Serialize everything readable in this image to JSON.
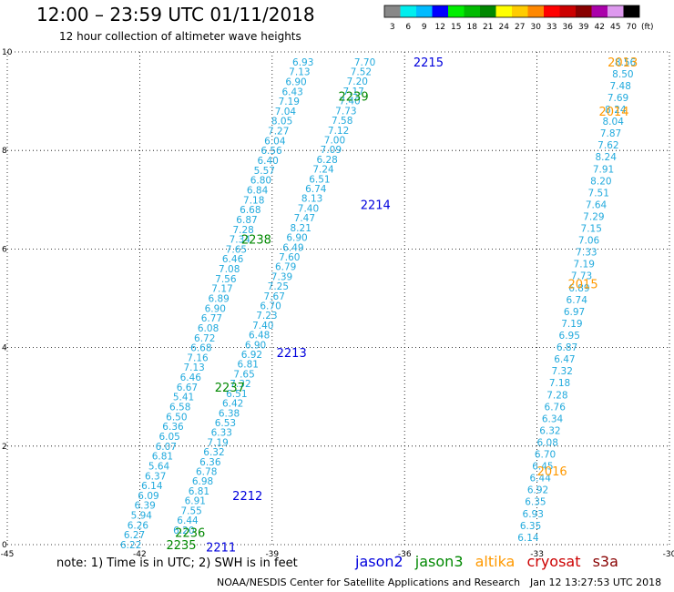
{
  "header": {
    "title": "12:00 – 23:59 UTC 01/11/2018",
    "subtitle": "12 hour collection of altimeter wave heights"
  },
  "colorbar": {
    "labels": [
      "3",
      "6",
      "9",
      "12",
      "15",
      "18",
      "21",
      "24",
      "27",
      "30",
      "33",
      "36",
      "39",
      "42",
      "45",
      "70"
    ],
    "unit": "(ft)",
    "colors": [
      "#888888",
      "#00eeee",
      "#00bbff",
      "#0000ff",
      "#00ee00",
      "#00bb00",
      "#008800",
      "#ffff00",
      "#ffcc00",
      "#ff8800",
      "#ff0000",
      "#cc0000",
      "#880000",
      "#aa00aa",
      "#dd99ee",
      "#000000"
    ]
  },
  "footer": {
    "note": "note: 1) Time is in UTC; 2) SWH is in feet",
    "credit": "NOAA/NESDIS Center for Satellite Applications and Research",
    "timestamp": "Jan 12 13:27:53 UTC 2018"
  },
  "satellites": [
    {
      "name": "jason2",
      "color": "#0000dd"
    },
    {
      "name": "jason3",
      "color": "#008800"
    },
    {
      "name": "altika",
      "color": "#ff9900"
    },
    {
      "name": "cryosat",
      "color": "#cc0000"
    },
    {
      "name": "s3a",
      "color": "#880000"
    }
  ],
  "chart_data": {
    "type": "scatter",
    "xlim": [
      -45,
      -30
    ],
    "ylim": [
      0,
      10
    ],
    "x_ticks": [
      "-45",
      "-42",
      "-39",
      "-36",
      "-33",
      "-30"
    ],
    "y_ticks": [
      "0",
      "2",
      "4",
      "6",
      "8",
      "10"
    ],
    "grid": true,
    "point_color": "#22aadd",
    "tracks": [
      {
        "name": "A",
        "start": [
          -42.2,
          0.0
        ],
        "end": [
          -38.3,
          9.8
        ],
        "values": [
          "6.22",
          "6.27",
          "6.26",
          "5.94",
          "6.39",
          "6.09",
          "6.14",
          "6.37",
          "5.64",
          "6.81",
          "6.07",
          "6.05",
          "6.36",
          "6.50",
          "6.58",
          "5.41",
          "6.67",
          "6.46",
          "7.13",
          "7.16",
          "6.68",
          "6.72",
          "6.08",
          "6.77",
          "6.90",
          "6.89",
          "7.17",
          "7.56",
          "7.08",
          "6.46",
          "7.65",
          "7.34",
          "7.28",
          "6.87",
          "6.68",
          "7.18",
          "6.84",
          "6.80",
          "5.57",
          "6.40",
          "6.56",
          "6.04",
          "7.27",
          "8.05",
          "7.04",
          "7.19",
          "6.43",
          "6.90",
          "7.13",
          "6.93"
        ]
      },
      {
        "name": "B",
        "start": [
          -41.0,
          0.3
        ],
        "end": [
          -36.9,
          9.8
        ],
        "values": [
          "6.20",
          "6.44",
          "7.55",
          "6.91",
          "6.81",
          "6.98",
          "6.78",
          "6.36",
          "6.32",
          "7.19",
          "6.33",
          "6.53",
          "6.38",
          "6.42",
          "6.51",
          "7.32",
          "7.65",
          "6.81",
          "6.92",
          "6.90",
          "6.48",
          "7.40",
          "7.23",
          "6.70",
          "7.67",
          "7.25",
          "7.39",
          "6.79",
          "7.60",
          "6.49",
          "6.90",
          "8.21",
          "7.47",
          "7.40",
          "8.13",
          "6.74",
          "6.51",
          "7.24",
          "6.28",
          "7.09",
          "7.00",
          "7.12",
          "7.58",
          "7.73",
          "7.40",
          "7.17",
          "7.20",
          "7.52",
          "7.70"
        ]
      },
      {
        "name": "C",
        "start": [
          -33.2,
          0.15
        ],
        "end": [
          -31.0,
          9.8
        ],
        "values": [
          "6.14",
          "6.35",
          "6.93",
          "6.35",
          "6.92",
          "6.44",
          "6.45",
          "6.70",
          "6.08",
          "6.32",
          "6.34",
          "6.76",
          "7.28",
          "7.18",
          "7.32",
          "6.47",
          "6.87",
          "6.95",
          "7.19",
          "6.97",
          "6.74",
          "6.89",
          "7.73",
          "7.19",
          "7.33",
          "7.06",
          "7.15",
          "7.29",
          "7.64",
          "7.51",
          "8.20",
          "7.91",
          "8.24",
          "7.62",
          "7.87",
          "8.04",
          "8.24",
          "7.69",
          "7.48",
          "8.50",
          "8.56"
        ]
      }
    ],
    "time_labels": [
      {
        "text": "2215",
        "x": -35.8,
        "y": 9.8,
        "sat": "jason2"
      },
      {
        "text": "2214",
        "x": -37.0,
        "y": 6.9,
        "sat": "jason2"
      },
      {
        "text": "2213",
        "x": -38.9,
        "y": 3.9,
        "sat": "jason2"
      },
      {
        "text": "2212",
        "x": -39.9,
        "y": 1.0,
        "sat": "jason2"
      },
      {
        "text": "2211",
        "x": -40.5,
        "y": -0.05,
        "sat": "jason2"
      },
      {
        "text": "2239",
        "x": -37.5,
        "y": 9.1,
        "sat": "jason3"
      },
      {
        "text": "2238",
        "x": -39.7,
        "y": 6.2,
        "sat": "jason3"
      },
      {
        "text": "2237",
        "x": -40.3,
        "y": 3.2,
        "sat": "jason3"
      },
      {
        "text": "2236",
        "x": -41.2,
        "y": 0.25,
        "sat": "jason3"
      },
      {
        "text": "2235",
        "x": -41.4,
        "y": 0.0,
        "sat": "jason3"
      },
      {
        "text": "2013",
        "x": -31.4,
        "y": 9.8,
        "sat": "altika"
      },
      {
        "text": "2014",
        "x": -31.6,
        "y": 8.8,
        "sat": "altika"
      },
      {
        "text": "2015",
        "x": -32.3,
        "y": 5.3,
        "sat": "altika"
      },
      {
        "text": "2016",
        "x": -33.0,
        "y": 1.5,
        "sat": "altika"
      }
    ]
  }
}
